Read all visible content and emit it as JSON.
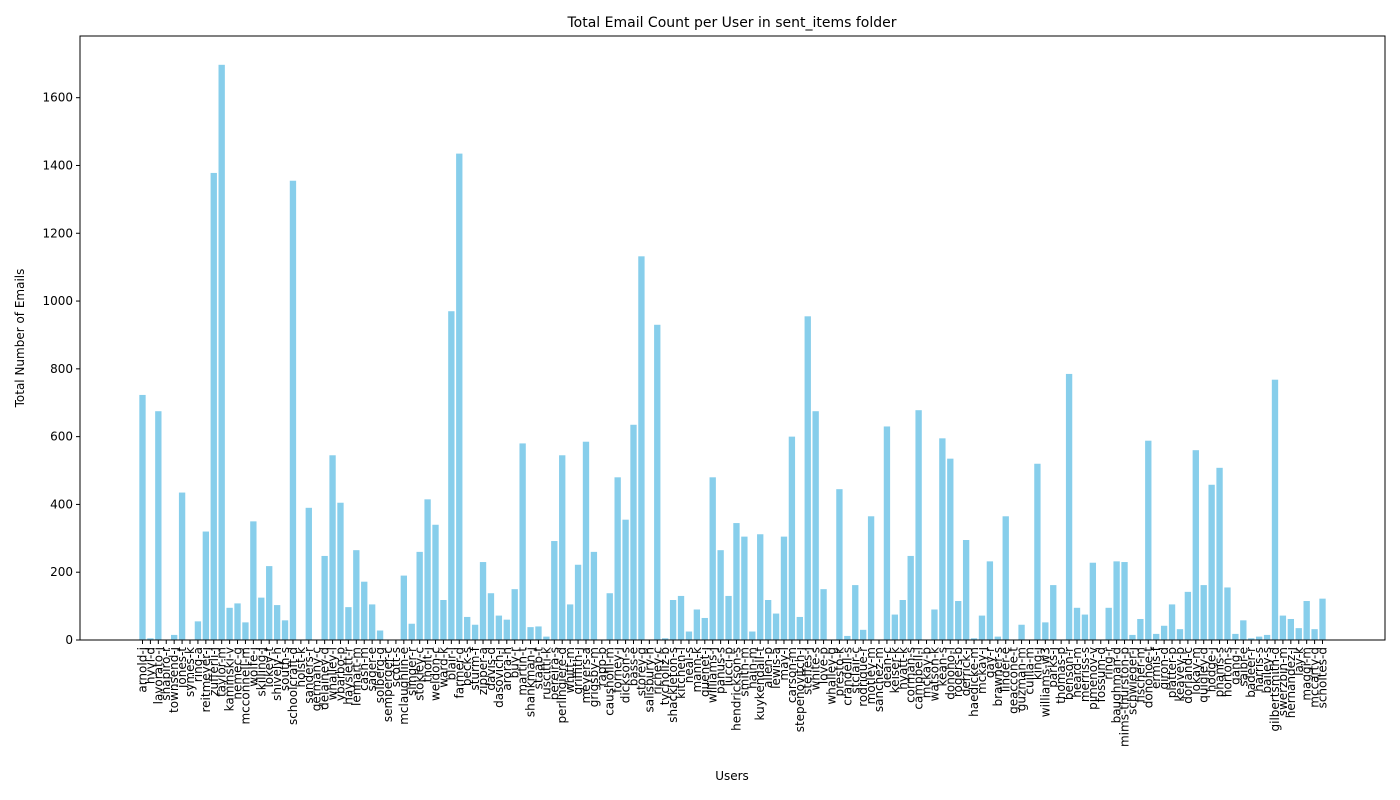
{
  "chart_data": {
    "type": "bar",
    "title": "Total Email Count per User in sent_items folder",
    "x_label": "Users",
    "y_label": "Total Number of Emails",
    "color": "#87ceeb",
    "grid": false,
    "ylim": [
      0,
      1782
    ],
    "yticks": [
      0,
      200,
      400,
      600,
      800,
      1000,
      1200,
      1400,
      1600
    ],
    "categories": [
      "arnold-j",
      "hyvl-d",
      "lavorato-j",
      "shapiro-r",
      "townsend-j",
      "jones-t",
      "symes-k",
      "ring-a",
      "reitmeyer-j",
      "zufferli-j",
      "taylor-m",
      "kaminski-v",
      "nemec-g",
      "mcconnell-m",
      "wolfe-j",
      "skilling-j",
      "lokey-t",
      "shively-h",
      "south-s",
      "schoolcraft-d",
      "holst-k",
      "sanders-r",
      "germany-c",
      "delainey-d",
      "whalley-l",
      "ybarbo-p",
      "hayslett-r",
      "lenhart-m",
      "cash-m",
      "sager-e",
      "solberg-g",
      "semperger-c",
      "scott-s",
      "mclaughlin-e",
      "slinger-r",
      "stokley-c",
      "tholt-j",
      "weldon-c",
      "ward-k",
      "blair-l",
      "farmer-d",
      "beck-s",
      "sturm-f",
      "zipper-a",
      "davis-d",
      "dasovich-j",
      "arora-h",
      "buy-r",
      "martin-t",
      "shankman-j",
      "staab-t",
      "ruscitti-k",
      "pereira-s",
      "perlingiere-d",
      "whitt-m",
      "griffith-j",
      "meyers-a",
      "grigsby-m",
      "rapp-b",
      "causholli-m",
      "forney-j",
      "dickson-s",
      "bass-e",
      "storey-g",
      "salisbury-h",
      "richey-c",
      "tycholiz-b",
      "shackleton-s",
      "kitchen-l",
      "neal-s",
      "mann-k",
      "quenet-j",
      "williams-j",
      "panus-s",
      "lucci-p",
      "hendrickson-s",
      "smith-m",
      "hain-m",
      "kuykendall-t",
      "allen-p",
      "lewis-a",
      "may-l",
      "carson-m",
      "stepenovitch-j",
      "steffes-j",
      "white-s",
      "love-p",
      "whalley-g",
      "presto-k",
      "crandell-s",
      "stclair-c",
      "rodrique-r",
      "motley-m",
      "sanchez-m",
      "dean-c",
      "keiser-k",
      "hyatt-k",
      "corman-s",
      "campbell-l",
      "mckay-b",
      "watson-k",
      "kean-s",
      "donoho-l",
      "rogers-b",
      "derrick-j",
      "haedicke-m",
      "mckay-j",
      "gay-r",
      "brawner-s",
      "linder-e",
      "geaccone-t",
      "guzman-m",
      "cuilla-m",
      "king-j",
      "williams-w3",
      "parks-j",
      "thomas-p",
      "benson-r",
      "heard-m",
      "merriss-s",
      "pimenov-v",
      "fossum-d",
      "ring-r",
      "baughman-d",
      "mims-thurston-p",
      "schwieger-j",
      "fischer-m",
      "donohoe-t",
      "ermis-f",
      "giron-d",
      "platter-p",
      "keavey-p",
      "dorland-c",
      "lokay-m",
      "quigley-d",
      "hodge-j",
      "phanis-s",
      "horton-s",
      "gang-l",
      "saibi-e",
      "badeer-r",
      "harris-s",
      "bailey-s",
      "gilbertsmith-d",
      "swerzbin-m",
      "hernandez-j",
      "lay-k",
      "maggi-m",
      "mccarty-d",
      "scholtes-d"
    ],
    "values": [
      723,
      5,
      675,
      0,
      15,
      435,
      0,
      55,
      320,
      1378,
      1697,
      95,
      108,
      52,
      350,
      125,
      218,
      103,
      58,
      1355,
      0,
      390,
      0,
      248,
      545,
      405,
      97,
      265,
      172,
      105,
      28,
      0,
      0,
      190,
      48,
      260,
      415,
      340,
      118,
      970,
      1435,
      68,
      45,
      230,
      138,
      72,
      60,
      150,
      580,
      38,
      40,
      10,
      292,
      545,
      105,
      222,
      585,
      260,
      0,
      138,
      480,
      355,
      635,
      1132,
      0,
      930,
      5,
      118,
      130,
      25,
      90,
      65,
      480,
      265,
      130,
      345,
      305,
      25,
      312,
      118,
      78,
      305,
      600,
      68,
      955,
      675,
      150,
      0,
      445,
      12,
      162,
      30,
      365,
      0,
      630,
      75,
      118,
      248,
      678,
      0,
      90,
      595,
      535,
      115,
      295,
      5,
      72,
      232,
      10,
      365,
      0,
      45,
      0,
      520,
      52,
      162,
      0,
      785,
      95,
      75,
      228,
      0,
      95,
      232,
      230,
      15,
      62,
      588,
      18,
      42,
      105,
      32,
      142,
      560,
      162,
      458,
      508,
      155,
      18,
      58,
      5,
      10,
      15,
      768,
      72,
      62,
      35,
      115,
      32,
      122
    ]
  }
}
